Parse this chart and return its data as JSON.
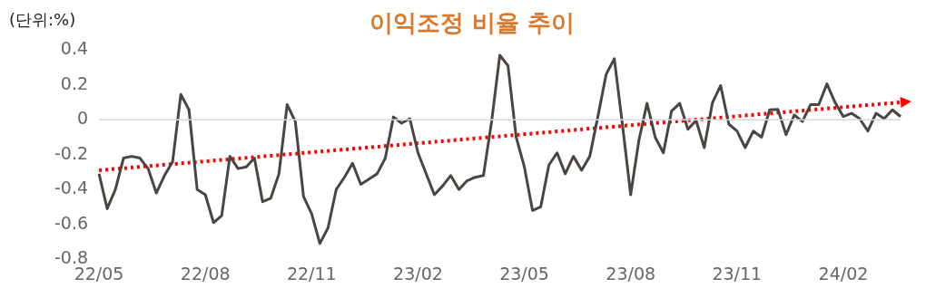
{
  "chart_data": {
    "type": "line",
    "title": "이익조정 비율 추이",
    "ylabel": "(단위:%)",
    "categories": [
      "22/05",
      null,
      null,
      null,
      null,
      null,
      null,
      null,
      null,
      null,
      null,
      null,
      null,
      "22/08",
      null,
      null,
      null,
      null,
      null,
      null,
      null,
      null,
      null,
      null,
      null,
      null,
      "22/11",
      null,
      null,
      null,
      null,
      null,
      null,
      null,
      null,
      null,
      null,
      null,
      null,
      "23/02",
      null,
      null,
      null,
      null,
      null,
      null,
      null,
      null,
      null,
      null,
      null,
      null,
      "23/05",
      null,
      null,
      null,
      null,
      null,
      null,
      null,
      null,
      null,
      null,
      null,
      null,
      "23/08",
      null,
      null,
      null,
      null,
      null,
      null,
      null,
      null,
      null,
      null,
      null,
      null,
      "23/11",
      null,
      null,
      null,
      null,
      null,
      null,
      null,
      null,
      null,
      null,
      null,
      null,
      "24/02",
      null,
      null,
      null,
      null,
      null,
      null,
      null
    ],
    "series": [
      {
        "type": "line",
        "color": "#4a4540",
        "values": [
          -0.31,
          -0.51,
          -0.4,
          -0.22,
          -0.21,
          -0.22,
          -0.28,
          -0.42,
          -0.32,
          -0.24,
          0.145,
          0.057,
          -0.4,
          -0.43,
          -0.59,
          -0.55,
          -0.21,
          -0.28,
          -0.27,
          -0.22,
          -0.47,
          -0.45,
          -0.31,
          0.087,
          -0.01,
          -0.44,
          -0.54,
          -0.71,
          -0.62,
          -0.4,
          -0.33,
          -0.25,
          -0.37,
          -0.34,
          -0.31,
          -0.22,
          0.016,
          -0.02,
          0.006,
          -0.19,
          -0.31,
          -0.43,
          -0.38,
          -0.32,
          -0.4,
          -0.35,
          -0.33,
          -0.32,
          -0.01,
          0.37,
          0.31,
          -0.1,
          -0.27,
          -0.52,
          -0.5,
          -0.26,
          -0.19,
          -0.31,
          -0.21,
          -0.29,
          -0.21,
          0.02,
          0.26,
          0.35,
          -0.03,
          -0.43,
          -0.12,
          0.094,
          -0.1,
          -0.19,
          0.05,
          0.094,
          -0.055,
          -0.004,
          -0.16,
          0.098,
          0.196,
          -0.025,
          -0.065,
          -0.16,
          -0.065,
          -0.1,
          0.057,
          0.06,
          -0.086,
          0.027,
          -0.01,
          0.087,
          0.087,
          0.206,
          0.098,
          0.018,
          0.037,
          0.006,
          -0.065,
          0.037,
          0.006,
          0.057,
          0.018
        ]
      },
      {
        "type": "line",
        "color": "#ff0000",
        "line_style": "dotted",
        "values": [
          -0.29,
          null,
          null,
          null,
          null,
          null,
          null,
          null,
          null,
          null,
          null,
          null,
          null,
          null,
          null,
          null,
          null,
          null,
          null,
          null,
          null,
          null,
          null,
          null,
          null,
          null,
          null,
          null,
          null,
          null,
          null,
          null,
          null,
          null,
          null,
          null,
          null,
          null,
          null,
          null,
          null,
          null,
          null,
          null,
          null,
          null,
          null,
          null,
          null,
          null,
          null,
          null,
          null,
          null,
          null,
          null,
          null,
          null,
          null,
          null,
          null,
          null,
          null,
          null,
          null,
          null,
          null,
          null,
          null,
          null,
          null,
          null,
          null,
          null,
          null,
          null,
          null,
          null,
          null,
          null,
          null,
          null,
          null,
          null,
          null,
          null,
          null,
          null,
          null,
          null,
          null,
          null,
          null,
          null,
          null,
          null,
          null,
          null,
          0.1
        ]
      }
    ],
    "ylim": [
      -0.8,
      0.4
    ],
    "yticks": [
      -0.8,
      -0.6,
      -0.4,
      -0.2,
      0,
      0.2,
      0.4
    ],
    "ref_lines": [
      {
        "axis": "y",
        "value": 0,
        "color": "#d9d9d9"
      }
    ],
    "grid": false,
    "legend": false
  }
}
